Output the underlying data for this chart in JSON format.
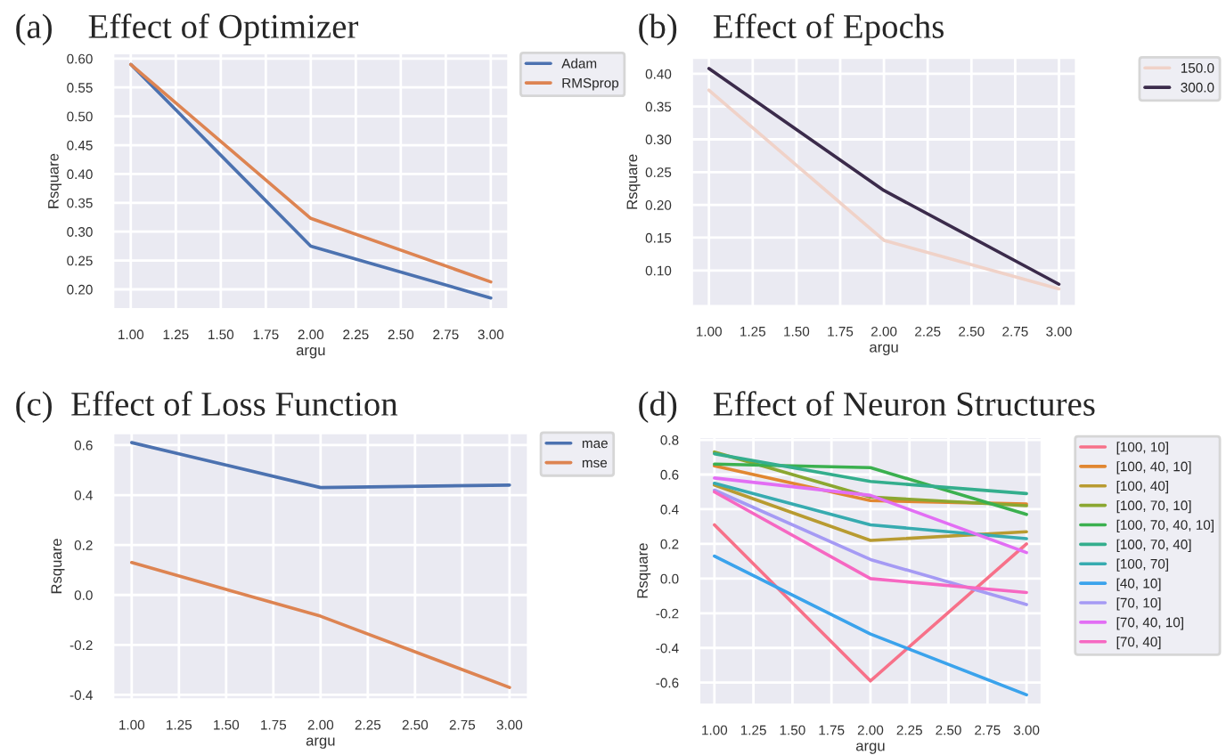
{
  "chart_data": [
    {
      "type": "line",
      "title": "(a)    Effect of Optimizer",
      "xlabel": "argu",
      "ylabel": "Rsquare",
      "grid": true,
      "legend": "right",
      "x": [
        1,
        2,
        3
      ],
      "xlim": [
        0.9,
        3.1
      ],
      "ylim": [
        0.165,
        0.61
      ],
      "xticks": [
        {
          "value": 1,
          "label": "1.00"
        },
        {
          "value": 1.25,
          "label": "1.25"
        },
        {
          "value": 1.5,
          "label": "1.50"
        },
        {
          "value": 1.75,
          "label": "1.75"
        },
        {
          "value": 2,
          "label": "2.00"
        },
        {
          "value": 2.25,
          "label": "2.25"
        },
        {
          "value": 2.5,
          "label": "2.50"
        },
        {
          "value": 2.75,
          "label": "2.75"
        },
        {
          "value": 3,
          "label": "3.00"
        }
      ],
      "yticks": [
        {
          "value": 0.2,
          "label": "0.20"
        },
        {
          "value": 0.25,
          "label": "0.25"
        },
        {
          "value": 0.3,
          "label": "0.30"
        },
        {
          "value": 0.35,
          "label": "0.35"
        },
        {
          "value": 0.4,
          "label": "0.40"
        },
        {
          "value": 0.45,
          "label": "0.45"
        },
        {
          "value": 0.5,
          "label": "0.50"
        },
        {
          "value": 0.55,
          "label": "0.55"
        },
        {
          "value": 0.6,
          "label": "0.60"
        }
      ],
      "series": [
        {
          "name": "Adam",
          "color": "#4c72b0",
          "values": [
            0.59,
            0.275,
            0.185
          ]
        },
        {
          "name": "RMSprop",
          "color": "#dd8452",
          "values": [
            0.59,
            0.323,
            0.213
          ]
        }
      ]
    },
    {
      "type": "line",
      "title": "(b)    Effect of Epochs",
      "xlabel": "argu",
      "ylabel": "Rsquare",
      "grid": true,
      "legend": "right",
      "x": [
        1,
        2,
        3
      ],
      "xlim": [
        0.9,
        3.1
      ],
      "ylim": [
        0.045,
        0.425
      ],
      "xticks": [
        {
          "value": 1,
          "label": "1.00"
        },
        {
          "value": 1.25,
          "label": "1.25"
        },
        {
          "value": 1.5,
          "label": "1.50"
        },
        {
          "value": 1.75,
          "label": "1.75"
        },
        {
          "value": 2,
          "label": "2.00"
        },
        {
          "value": 2.25,
          "label": "2.25"
        },
        {
          "value": 2.5,
          "label": "2.50"
        },
        {
          "value": 2.75,
          "label": "2.75"
        },
        {
          "value": 3,
          "label": "3.00"
        }
      ],
      "yticks": [
        {
          "value": 0.1,
          "label": "0.10"
        },
        {
          "value": 0.15,
          "label": "0.15"
        },
        {
          "value": 0.2,
          "label": "0.20"
        },
        {
          "value": 0.25,
          "label": "0.25"
        },
        {
          "value": 0.3,
          "label": "0.30"
        },
        {
          "value": 0.35,
          "label": "0.35"
        },
        {
          "value": 0.4,
          "label": "0.40"
        }
      ],
      "series": [
        {
          "name": "150.0",
          "color": "#f0d2c8",
          "values": [
            0.375,
            0.146,
            0.072
          ]
        },
        {
          "name": "300.0",
          "color": "#3b2b4b",
          "values": [
            0.408,
            0.222,
            0.079
          ]
        }
      ]
    },
    {
      "type": "line",
      "title": "(c)  Effect of Loss Function",
      "xlabel": "argu",
      "ylabel": "Rsquare",
      "grid": true,
      "legend": "right",
      "x": [
        1,
        2,
        3
      ],
      "xlim": [
        0.9,
        3.1
      ],
      "ylim": [
        -0.42,
        0.65
      ],
      "xticks": [
        {
          "value": 1,
          "label": "1.00"
        },
        {
          "value": 1.25,
          "label": "1.25"
        },
        {
          "value": 1.5,
          "label": "1.50"
        },
        {
          "value": 1.75,
          "label": "1.75"
        },
        {
          "value": 2,
          "label": "2.00"
        },
        {
          "value": 2.25,
          "label": "2.25"
        },
        {
          "value": 2.5,
          "label": "2.50"
        },
        {
          "value": 2.75,
          "label": "2.75"
        },
        {
          "value": 3,
          "label": "3.00"
        }
      ],
      "yticks": [
        {
          "value": -0.4,
          "label": "-0.4"
        },
        {
          "value": -0.2,
          "label": "-0.2"
        },
        {
          "value": 0,
          "label": "0.0"
        },
        {
          "value": 0.2,
          "label": "0.2"
        },
        {
          "value": 0.4,
          "label": "0.4"
        },
        {
          "value": 0.6,
          "label": "0.6"
        }
      ],
      "series": [
        {
          "name": "mae",
          "color": "#4c72b0",
          "values": [
            0.61,
            0.43,
            0.44
          ]
        },
        {
          "name": "mse",
          "color": "#dd8452",
          "values": [
            0.13,
            -0.085,
            -0.37
          ]
        }
      ]
    },
    {
      "type": "line",
      "title": "(d)    Effect of Neuron Structures",
      "xlabel": "argu",
      "ylabel": "Rsquare",
      "grid": true,
      "legend": "right",
      "x": [
        1,
        2,
        3
      ],
      "xlim": [
        0.9,
        3.1
      ],
      "ylim": [
        -0.73,
        0.82
      ],
      "xticks": [
        {
          "value": 1,
          "label": "1.00"
        },
        {
          "value": 1.25,
          "label": "1.25"
        },
        {
          "value": 1.5,
          "label": "1.50"
        },
        {
          "value": 1.75,
          "label": "1.75"
        },
        {
          "value": 2,
          "label": "2.00"
        },
        {
          "value": 2.25,
          "label": "2.25"
        },
        {
          "value": 2.5,
          "label": "2.50"
        },
        {
          "value": 2.75,
          "label": "2.75"
        },
        {
          "value": 3,
          "label": "3.00"
        }
      ],
      "yticks": [
        {
          "value": -0.6,
          "label": "-0.6"
        },
        {
          "value": -0.4,
          "label": "-0.4"
        },
        {
          "value": -0.2,
          "label": "-0.2"
        },
        {
          "value": 0,
          "label": "0.0"
        },
        {
          "value": 0.2,
          "label": "0.2"
        },
        {
          "value": 0.4,
          "label": "0.4"
        },
        {
          "value": 0.6,
          "label": "0.6"
        },
        {
          "value": 0.8,
          "label": "0.8"
        }
      ],
      "series": [
        {
          "name": "[100, 10]",
          "color": "#f77189",
          "values": [
            0.31,
            -0.59,
            0.2
          ]
        },
        {
          "name": "[100, 40, 10]",
          "color": "#e18731",
          "values": [
            0.65,
            0.45,
            0.43
          ]
        },
        {
          "name": "[100, 40]",
          "color": "#b89b31",
          "values": [
            0.54,
            0.22,
            0.27
          ]
        },
        {
          "name": "[100, 70, 10]",
          "color": "#8ba731",
          "values": [
            0.73,
            0.47,
            0.42
          ]
        },
        {
          "name": "[100, 70, 40, 10]",
          "color": "#3bb04f",
          "values": [
            0.66,
            0.64,
            0.37
          ]
        },
        {
          "name": "[100, 70, 40]",
          "color": "#34ae8d",
          "values": [
            0.72,
            0.56,
            0.49
          ]
        },
        {
          "name": "[100, 70]",
          "color": "#37abb0",
          "values": [
            0.55,
            0.31,
            0.23
          ]
        },
        {
          "name": "[40, 10]",
          "color": "#3ba3ec",
          "values": [
            0.13,
            -0.32,
            -0.67
          ]
        },
        {
          "name": "[70, 10]",
          "color": "#a59af4",
          "values": [
            0.51,
            0.11,
            -0.15
          ]
        },
        {
          "name": "[70, 40, 10]",
          "color": "#e26ef4",
          "values": [
            0.58,
            0.48,
            0.15
          ]
        },
        {
          "name": "[70, 40]",
          "color": "#f668c2",
          "values": [
            0.5,
            0.0,
            -0.08
          ]
        }
      ]
    }
  ]
}
